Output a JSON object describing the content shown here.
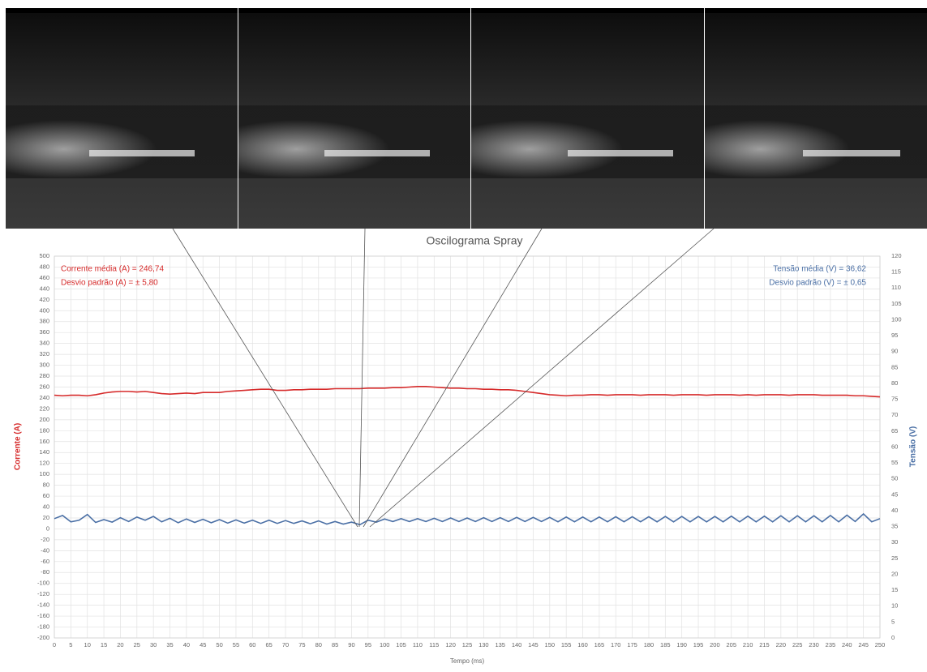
{
  "chart_data": {
    "type": "line",
    "title": "Oscilograma Spray",
    "x_label": "Tempo (ms)",
    "y_label": "Corrente (A)",
    "y2_label": "Tensão (V)",
    "annotations": [
      "Corrente média (A) = 246,74",
      "Desvio padrão (A) = ± 5,80",
      "Tensão média (V) = 36,62",
      "Desvio padrão (V) = ± 0,65"
    ],
    "xlim": [
      0,
      250
    ],
    "ylim": [
      -200,
      500
    ],
    "y2lim": [
      0,
      120
    ],
    "grid": true,
    "xticks": [
      0,
      5,
      10,
      15,
      20,
      25,
      30,
      35,
      40,
      45,
      50,
      55,
      60,
      65,
      70,
      75,
      80,
      85,
      90,
      95,
      100,
      105,
      110,
      115,
      120,
      125,
      130,
      135,
      140,
      145,
      150,
      155,
      160,
      165,
      170,
      175,
      180,
      185,
      190,
      195,
      200,
      205,
      210,
      215,
      220,
      225,
      230,
      235,
      240,
      245,
      250
    ],
    "yticks": [
      -200,
      -180,
      -160,
      -140,
      -120,
      -100,
      -80,
      -60,
      -40,
      -20,
      0,
      20,
      40,
      60,
      80,
      100,
      120,
      140,
      160,
      180,
      200,
      220,
      240,
      260,
      280,
      300,
      320,
      340,
      360,
      380,
      400,
      420,
      440,
      460,
      480,
      500
    ],
    "y2ticks": [
      0,
      5,
      10,
      15,
      20,
      25,
      30,
      35,
      40,
      45,
      50,
      55,
      60,
      65,
      70,
      75,
      80,
      85,
      90,
      95,
      100,
      105,
      110,
      115,
      120
    ],
    "x": [
      0,
      2.5,
      5,
      7.5,
      10,
      12.5,
      15,
      17.5,
      20,
      22.5,
      25,
      27.5,
      30,
      32.5,
      35,
      37.5,
      40,
      42.5,
      45,
      47.5,
      50,
      52.5,
      55,
      57.5,
      60,
      62.5,
      65,
      67.5,
      70,
      72.5,
      75,
      77.5,
      80,
      82.5,
      85,
      87.5,
      90,
      92.5,
      95,
      97.5,
      100,
      102.5,
      105,
      107.5,
      110,
      112.5,
      115,
      117.5,
      120,
      122.5,
      125,
      127.5,
      130,
      132.5,
      135,
      137.5,
      140,
      142.5,
      145,
      147.5,
      150,
      152.5,
      155,
      157.5,
      160,
      162.5,
      165,
      167.5,
      170,
      172.5,
      175,
      177.5,
      180,
      182.5,
      185,
      187.5,
      190,
      192.5,
      195,
      197.5,
      200,
      202.5,
      205,
      207.5,
      210,
      212.5,
      215,
      217.5,
      220,
      222.5,
      225,
      227.5,
      230,
      232.5,
      235,
      237.5,
      240,
      242.5,
      245,
      247.5,
      250
    ],
    "series": [
      {
        "color": "#d62b2b",
        "axis": "y",
        "values": [
          245,
          244,
          245,
          245,
          244,
          246,
          249,
          251,
          252,
          252,
          251,
          252,
          250,
          248,
          247,
          248,
          249,
          248,
          250,
          250,
          250,
          252,
          253,
          254,
          255,
          256,
          256,
          254,
          254,
          255,
          255,
          256,
          256,
          256,
          257,
          257,
          257,
          257,
          258,
          258,
          258,
          259,
          259,
          260,
          261,
          261,
          260,
          259,
          258,
          258,
          257,
          257,
          256,
          256,
          255,
          255,
          254,
          252,
          250,
          248,
          246,
          245,
          244,
          245,
          245,
          246,
          246,
          245,
          246,
          246,
          246,
          245,
          246,
          246,
          246,
          245,
          246,
          246,
          246,
          245,
          246,
          246,
          246,
          245,
          246,
          245,
          246,
          246,
          246,
          245,
          246,
          246,
          246,
          245,
          245,
          245,
          245,
          244,
          244,
          243,
          242
        ]
      },
      {
        "color": "#4a6fa5",
        "axis": "y2",
        "values": [
          37.5,
          38.5,
          36.5,
          37,
          38.8,
          36.3,
          37.2,
          36.4,
          37.8,
          36.6,
          38,
          37,
          38.2,
          36.5,
          37.6,
          36.2,
          37.4,
          36.3,
          37.3,
          36.2,
          37.2,
          36.1,
          37.1,
          36.1,
          37,
          36,
          37,
          36,
          36.9,
          36,
          36.8,
          35.9,
          36.8,
          35.8,
          36.6,
          35.8,
          36.4,
          35.6,
          37,
          36.4,
          37.4,
          36.6,
          37.5,
          36.6,
          37.5,
          36.6,
          37.6,
          36.6,
          37.7,
          36.6,
          37.7,
          36.6,
          37.8,
          36.6,
          37.8,
          36.6,
          37.9,
          36.6,
          37.9,
          36.6,
          37.9,
          36.5,
          38,
          36.5,
          38,
          36.5,
          38,
          36.5,
          38.1,
          36.5,
          38.1,
          36.5,
          38.1,
          36.5,
          38.2,
          36.5,
          38.2,
          36.5,
          38.2,
          36.5,
          38.2,
          36.5,
          38.3,
          36.5,
          38.3,
          36.5,
          38.3,
          36.5,
          38.4,
          36.5,
          38.4,
          36.5,
          38.4,
          36.5,
          38.5,
          36.5,
          38.6,
          36.6,
          39,
          36.5,
          37.5
        ]
      }
    ]
  }
}
